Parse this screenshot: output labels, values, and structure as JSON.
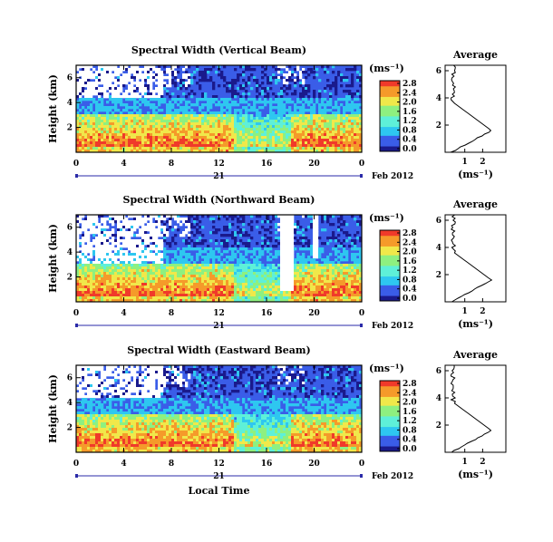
{
  "chart_data": [
    {
      "type": "heatmap",
      "title": "Spectral Width (Vertical Beam)",
      "ylabel": "Height (km)",
      "yticks": [
        "2",
        "4",
        "6"
      ],
      "xticks": [
        "0",
        "4",
        "8",
        "12",
        "16",
        "20",
        "0"
      ],
      "xrange": [
        0,
        24
      ],
      "date_day": "21",
      "date_month": "Feb 2012",
      "colorbar": {
        "unit": "(ms⁻¹)",
        "ticks": [
          "0.0",
          "0.4",
          "0.8",
          "1.2",
          "1.6",
          "2.0",
          "2.4",
          "2.8"
        ]
      },
      "average": {
        "title": "Average",
        "xticks": [
          "1",
          "2"
        ],
        "yticks": [
          "2",
          "4",
          "6"
        ],
        "xlabel": "(ms⁻¹)"
      }
    },
    {
      "type": "heatmap",
      "title": "Spectral Width (Northward Beam)",
      "ylabel": "Height (km)",
      "yticks": [
        "2",
        "4",
        "6"
      ],
      "xticks": [
        "0",
        "4",
        "8",
        "12",
        "16",
        "20",
        "0"
      ],
      "xrange": [
        0,
        24
      ],
      "date_day": "21",
      "date_month": "Feb 2012",
      "colorbar": {
        "unit": "(ms⁻¹)",
        "ticks": [
          "0.0",
          "0.4",
          "0.8",
          "1.2",
          "1.6",
          "2.0",
          "2.4",
          "2.8"
        ]
      },
      "average": {
        "title": "Average",
        "xticks": [
          "1",
          "2"
        ],
        "yticks": [
          "2",
          "4",
          "6"
        ],
        "xlabel": "(ms⁻¹)"
      }
    },
    {
      "type": "heatmap",
      "title": "Spectral Width (Eastward Beam)",
      "ylabel": "Height (km)",
      "yticks": [
        "2",
        "4",
        "6"
      ],
      "xticks": [
        "0",
        "4",
        "8",
        "12",
        "16",
        "20",
        "0"
      ],
      "xrange": [
        0,
        24
      ],
      "date_day": "21",
      "date_month": "Feb 2012",
      "xlabel": "Local Time",
      "colorbar": {
        "unit": "(ms⁻¹)",
        "ticks": [
          "0.0",
          "0.4",
          "0.8",
          "1.2",
          "1.6",
          "2.0",
          "2.4",
          "2.8"
        ]
      },
      "average": {
        "title": "Average",
        "xticks": [
          "1",
          "2"
        ],
        "yticks": [
          "2",
          "4",
          "6"
        ],
        "xlabel": "(ms⁻¹)"
      }
    }
  ],
  "colors": {
    "white": "#ffffff",
    "navy": "#1a1a8c",
    "blue": "#3a5de8",
    "cyan": "#2ec7f0",
    "aqua": "#5ef0d8",
    "green": "#8ef080",
    "yellow": "#f0e84a",
    "orange": "#f59a2a",
    "red": "#f03a2a"
  }
}
